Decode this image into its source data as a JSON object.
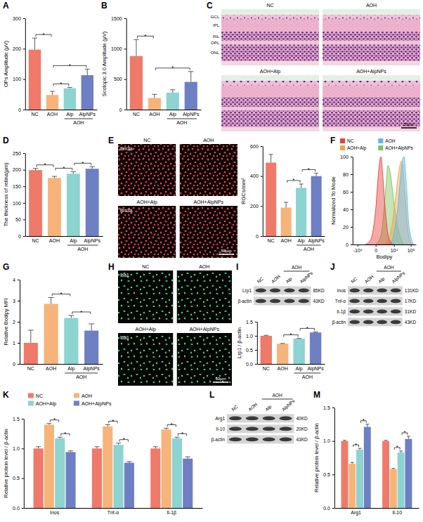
{
  "chart_data": [
    {
      "label": "A",
      "type": "bar",
      "y_label": "OPs Amplitude (μV)",
      "categories": [
        "NC",
        "AOH",
        "Alp",
        "AlpNPs"
      ],
      "group_label": {
        "text": "AOH",
        "from": 2,
        "to": 3
      },
      "values": [
        197,
        48,
        70,
        113
      ],
      "errors": [
        38,
        12,
        3,
        20
      ],
      "colors": [
        "#EF7A6A",
        "#F6B47A",
        "#8DD3D0",
        "#6F7FC3"
      ],
      "ylim": [
        0,
        300
      ],
      "yticks": [
        0,
        100,
        200,
        300
      ],
      "significance": [
        {
          "from": 0,
          "to": 1,
          "label": "*"
        },
        {
          "from": 1,
          "to": 2,
          "label": "*"
        },
        {
          "from": 1,
          "to": 3,
          "label": "*"
        }
      ]
    },
    {
      "label": "B",
      "type": "bar",
      "y_label": "Scotopic 3.0 Amplitude (μV)",
      "categories": [
        "NC",
        "AOH",
        "Alp",
        "AlpNPs"
      ],
      "group_label": {
        "text": "AOH",
        "from": 2,
        "to": 3
      },
      "values": [
        880,
        190,
        280,
        455
      ],
      "errors": [
        270,
        60,
        45,
        170
      ],
      "colors": [
        "#EF7A6A",
        "#F6B47A",
        "#8DD3D0",
        "#6F7FC3"
      ],
      "ylim": [
        0,
        1500
      ],
      "yticks": [
        0,
        500,
        1000,
        1500
      ],
      "significance": [
        {
          "from": 0,
          "to": 1,
          "label": "*"
        },
        {
          "from": 1,
          "to": 3,
          "label": "*"
        }
      ]
    },
    {
      "label": "D",
      "type": "bar",
      "y_label": "The thickness of retina(μm)",
      "categories": [
        "NC",
        "AOH",
        "Alp",
        "AlpNPs"
      ],
      "group_label": {
        "text": "AOH",
        "from": 2,
        "to": 3
      },
      "values": [
        199,
        175,
        188,
        203
      ],
      "errors": [
        5,
        5,
        6,
        6
      ],
      "colors": [
        "#EF7A6A",
        "#F6B47A",
        "#8DD3D0",
        "#6F7FC3"
      ],
      "ylim": [
        0,
        250
      ],
      "yticks": [
        0,
        50,
        100,
        150,
        200,
        250
      ],
      "significance": [
        {
          "from": 0,
          "to": 1,
          "label": "*"
        },
        {
          "from": 1,
          "to": 2,
          "label": "*"
        },
        {
          "from": 2,
          "to": 3,
          "label": "*"
        }
      ]
    },
    {
      "type": "bar",
      "y_label": "RGCs/mm²",
      "categories": [
        "NC",
        "AOH",
        "Alp",
        "AlpNPs"
      ],
      "group_label": {
        "text": "AOH",
        "from": 2,
        "to": 3
      },
      "values": [
        490,
        190,
        322,
        400
      ],
      "errors": [
        55,
        35,
        25,
        20
      ],
      "colors": [
        "#EF7A6A",
        "#F6B47A",
        "#8DD3D0",
        "#6F7FC3"
      ],
      "ylim": [
        0,
        600
      ],
      "yticks": [
        0,
        200,
        400,
        600
      ],
      "significance": [
        {
          "from": 1,
          "to": 2,
          "label": "*"
        },
        {
          "from": 2,
          "to": 3,
          "label": "*"
        }
      ]
    },
    {
      "label": "F",
      "type": "area",
      "x_label": "Bodipy",
      "y_label": "Normalized To Mode",
      "log": "x",
      "legend": "top",
      "xlim": [
        -20000,
        200000
      ],
      "xticks": [
        {
          "value": -10000,
          "label": "-10⁴"
        },
        0,
        {
          "value": 10000,
          "label": "10⁴"
        },
        {
          "value": 100000,
          "label": "10⁵"
        }
      ],
      "ylim": [
        0,
        100
      ],
      "yticks": [
        0,
        20,
        40,
        60,
        80,
        100
      ],
      "series": [
        {
          "name": "NC",
          "color": "#E8403A",
          "x": [
            -3000,
            -1000,
            0,
            500,
            1000,
            1500,
            2500,
            4000,
            6000,
            10000
          ],
          "values": [
            0,
            5,
            40,
            85,
            100,
            80,
            40,
            12,
            3,
            0
          ]
        },
        {
          "name": "AOH",
          "color": "#5BB8E8",
          "x": [
            4000,
            8000,
            12000,
            18000,
            25000,
            32000,
            40000,
            55000,
            80000,
            150000
          ],
          "values": [
            0,
            6,
            20,
            45,
            75,
            95,
            100,
            70,
            20,
            0
          ]
        },
        {
          "name": "AOH+Alp",
          "color": "#F5A04A",
          "x": [
            2000,
            5000,
            8000,
            12000,
            16000,
            22000,
            30000,
            45000,
            70000,
            120000
          ],
          "values": [
            0,
            8,
            25,
            50,
            70,
            88,
            95,
            60,
            15,
            0
          ]
        },
        {
          "name": "AOH+AlpNPs",
          "color": "#7DC55A",
          "x": [
            0,
            1000,
            2000,
            3000,
            4000,
            6000,
            9000,
            15000,
            25000,
            40000
          ],
          "values": [
            0,
            10,
            40,
            70,
            90,
            80,
            55,
            25,
            8,
            0
          ]
        }
      ]
    },
    {
      "label": "G",
      "type": "bar",
      "y_label": "Relative Bodipy MFI",
      "categories": [
        "NC",
        "AOH",
        "Alp",
        "AlpNPs"
      ],
      "group_label": {
        "text": "AOH",
        "from": 2,
        "to": 3
      },
      "values": [
        1,
        2.85,
        2.18,
        1.58
      ],
      "errors": [
        0.6,
        0.3,
        0.12,
        0.32
      ],
      "colors": [
        "#EF7A6A",
        "#F6B47A",
        "#8DD3D0",
        "#6F7FC3"
      ],
      "ylim": [
        0,
        4
      ],
      "yticks": [
        0,
        1,
        2,
        3,
        4
      ],
      "significance": [
        {
          "from": 1,
          "to": 2,
          "label": "*"
        },
        {
          "from": 2,
          "to": 3,
          "label": "*"
        }
      ]
    },
    {
      "type": "bar",
      "y_label": "Lrp1 / β-actin",
      "categories": [
        "NC",
        "AOH",
        "Alp",
        "AlpNPs"
      ],
      "group_label": {
        "text": "AOH",
        "from": 2,
        "to": 3
      },
      "values": [
        1,
        0.72,
        0.9,
        1.12
      ],
      "errors": [
        0.02,
        0.01,
        0.01,
        0.02
      ],
      "colors": [
        "#EF7A6A",
        "#F6B47A",
        "#8DD3D0",
        "#6F7FC3"
      ],
      "ylim": [
        0,
        1.5
      ],
      "yticks": [
        {
          "value": 0,
          "label": "0.0"
        },
        0.5,
        {
          "value": 1,
          "label": "1.0"
        },
        1.5
      ],
      "significance": [
        {
          "from": 1,
          "to": 2,
          "label": "*"
        },
        {
          "from": 2,
          "to": 3,
          "label": "*"
        }
      ]
    },
    {
      "label": "K",
      "type": "bar",
      "y_label": "Relative protein level / β-actin",
      "legend": "top",
      "categories": [
        "Inos",
        "Tnf-α",
        "Il-1β"
      ],
      "series": [
        {
          "name": "NC",
          "color": "#EF7A6A",
          "values": [
            1,
            1,
            1
          ],
          "errors": [
            0.03,
            0.03,
            0.03
          ]
        },
        {
          "name": "AOH",
          "color": "#F6B47A",
          "values": [
            1.4,
            1.37,
            1.32
          ],
          "errors": [
            0.02,
            0.03,
            0.02
          ]
        },
        {
          "name": "AOH+Alp",
          "color": "#8DD3D0",
          "values": [
            1.17,
            1.06,
            1.17
          ],
          "errors": [
            0.02,
            0.03,
            0.02
          ]
        },
        {
          "name": "AOH+AlpNPs",
          "color": "#6F7FC3",
          "values": [
            0.94,
            0.76,
            0.83
          ],
          "errors": [
            0.02,
            0.02,
            0.03
          ]
        }
      ],
      "ylim": [
        0,
        1.5
      ],
      "yticks": [
        {
          "value": 0,
          "label": "0.0"
        },
        0.5,
        {
          "value": 1,
          "label": "1.0"
        },
        1.5
      ],
      "significance": [
        {
          "category": 0,
          "from": 1,
          "to": 2,
          "label": "*"
        },
        {
          "category": 0,
          "from": 2,
          "to": 3,
          "label": "*"
        },
        {
          "category": 1,
          "from": 1,
          "to": 2,
          "label": "*"
        },
        {
          "category": 1,
          "from": 2,
          "to": 3,
          "label": "*"
        },
        {
          "category": 2,
          "from": 1,
          "to": 2,
          "label": "*"
        },
        {
          "category": 2,
          "from": 2,
          "to": 3,
          "label": "*"
        }
      ]
    },
    {
      "label": "M",
      "type": "bar",
      "y_label": "Relative protein level / β-actin",
      "categories": [
        "Arg1",
        "Il-10"
      ],
      "series": [
        {
          "color": "#EF7A6A",
          "values": [
            1,
            1
          ],
          "errors": [
            0.01,
            0.01
          ]
        },
        {
          "color": "#F6B47A",
          "values": [
            0.66,
            0.58
          ],
          "errors": [
            0.02,
            0.01
          ]
        },
        {
          "color": "#8DD3D0",
          "values": [
            0.87,
            0.83
          ],
          "errors": [
            0.02,
            0.02
          ]
        },
        {
          "color": "#6F7FC3",
          "values": [
            1.21,
            1.03
          ],
          "errors": [
            0.04,
            0.04
          ]
        }
      ],
      "ylim": [
        0,
        1.5
      ],
      "yticks": [
        {
          "value": 0,
          "label": "0.0"
        },
        0.5,
        {
          "value": 1,
          "label": "1.0"
        },
        1.5
      ],
      "significance": [
        {
          "category": 0,
          "from": 1,
          "to": 2,
          "label": "*"
        },
        {
          "category": 0,
          "from": 2,
          "to": 3,
          "label": "*"
        },
        {
          "category": 1,
          "from": 1,
          "to": 2,
          "label": "*"
        },
        {
          "category": 1,
          "from": 2,
          "to": 3,
          "label": "*"
        }
      ]
    }
  ],
  "images": [
    {
      "label": "C",
      "titles": [
        "NC",
        "AOH",
        "AOH+Alp",
        "AOH+AlpNPs"
      ],
      "layers": [
        "GCL",
        "IPL",
        "INL",
        "OPL",
        "ONL"
      ],
      "scale_bar": "50μm"
    },
    {
      "label": "E",
      "titles": [
        "NC",
        "AOH",
        "AOH+Alp",
        "AOH+AlpNPs"
      ],
      "stain": "Brn3a",
      "color": "#F03A3A",
      "scale_bar": "50μm"
    },
    {
      "label": "H",
      "titles": [
        "NC",
        "AOH",
        "AOH+Alp",
        "AOH+AlpNPs"
      ],
      "stain": "Iba1",
      "color": "#3FD45A",
      "scale_bar": "50μm"
    }
  ],
  "blots": [
    {
      "label": "I",
      "columns": [
        "NC",
        "AOH",
        "Alp",
        "AlpNPs"
      ],
      "group_label": {
        "text": "AOH",
        "from": 2,
        "to": 3
      },
      "rows": [
        {
          "protein": "Lrp1",
          "size": "85KD"
        },
        {
          "protein": "β-actin",
          "size": "43KD"
        }
      ]
    },
    {
      "label": "J",
      "columns": [
        "NC",
        "AOH",
        "Alp",
        "AlpNPs"
      ],
      "group_label": {
        "text": "AOH",
        "from": 2,
        "to": 3
      },
      "rows": [
        {
          "protein": "Inos",
          "size": "131KD"
        },
        {
          "protein": "Tnf-α",
          "size": "17KD"
        },
        {
          "protein": "Il-1β",
          "size": "31KD"
        },
        {
          "protein": "β-actin",
          "size": "43KD"
        }
      ]
    },
    {
      "label": "L",
      "columns": [
        "NC",
        "AOH",
        "Alp",
        "AlpNPs"
      ],
      "group_label": {
        "text": "AOH",
        "from": 2,
        "to": 3
      },
      "rows": [
        {
          "protein": "Arg1",
          "size": "40KD"
        },
        {
          "protein": "Il-10",
          "size": "20KD"
        },
        {
          "protein": "β-actin",
          "size": "43KD"
        }
      ]
    }
  ]
}
